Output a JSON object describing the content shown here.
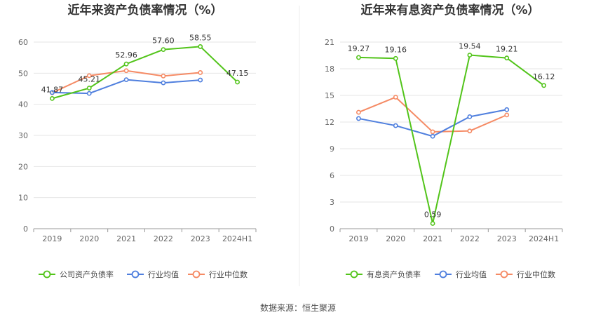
{
  "source_text": "数据来源：恒生聚源",
  "colors": {
    "company": "#52c41a",
    "industry_avg": "#4f7fde",
    "industry_median": "#f58a64"
  },
  "chart_data": [
    {
      "type": "line",
      "title": "近年来资产负债率情况（%）",
      "categories": [
        "2019",
        "2020",
        "2021",
        "2022",
        "2023",
        "2024H1"
      ],
      "ylim": [
        0,
        60
      ],
      "yticks": [
        0,
        10,
        20,
        30,
        40,
        50,
        60
      ],
      "grid": true,
      "legend_position": "bottom",
      "series": [
        {
          "name": "公司资产负债率",
          "color": "#52c41a",
          "values": [
            41.87,
            45.21,
            52.96,
            57.6,
            58.55,
            47.15
          ],
          "labels": [
            "41.87",
            "45.21",
            "52.96",
            "57.60",
            "58.55",
            "47.15"
          ]
        },
        {
          "name": "行业均值",
          "color": "#4f7fde",
          "values": [
            43.8,
            43.5,
            47.9,
            46.9,
            47.8,
            null
          ]
        },
        {
          "name": "行业中位数",
          "color": "#f58a64",
          "values": [
            43.7,
            49.2,
            50.8,
            49.1,
            50.2,
            null
          ]
        }
      ]
    },
    {
      "type": "line",
      "title": "近年来有息资产负债率情况（%）",
      "categories": [
        "2019",
        "2020",
        "2021",
        "2022",
        "2023",
        "2024H1"
      ],
      "ylim": [
        0,
        21
      ],
      "yticks": [
        0,
        3,
        6,
        9,
        12,
        15,
        18,
        21
      ],
      "grid": true,
      "legend_position": "bottom",
      "series": [
        {
          "name": "有息资产负债率",
          "color": "#52c41a",
          "values": [
            19.27,
            19.16,
            0.59,
            19.54,
            19.21,
            16.12
          ],
          "labels": [
            "19.27",
            "19.16",
            "0.59",
            "19.54",
            "19.21",
            "16.12"
          ]
        },
        {
          "name": "行业均值",
          "color": "#4f7fde",
          "values": [
            12.4,
            11.6,
            10.4,
            12.6,
            13.4,
            null
          ]
        },
        {
          "name": "行业中位数",
          "color": "#f58a64",
          "values": [
            13.1,
            14.8,
            10.9,
            11.0,
            12.8,
            null
          ]
        }
      ]
    }
  ]
}
